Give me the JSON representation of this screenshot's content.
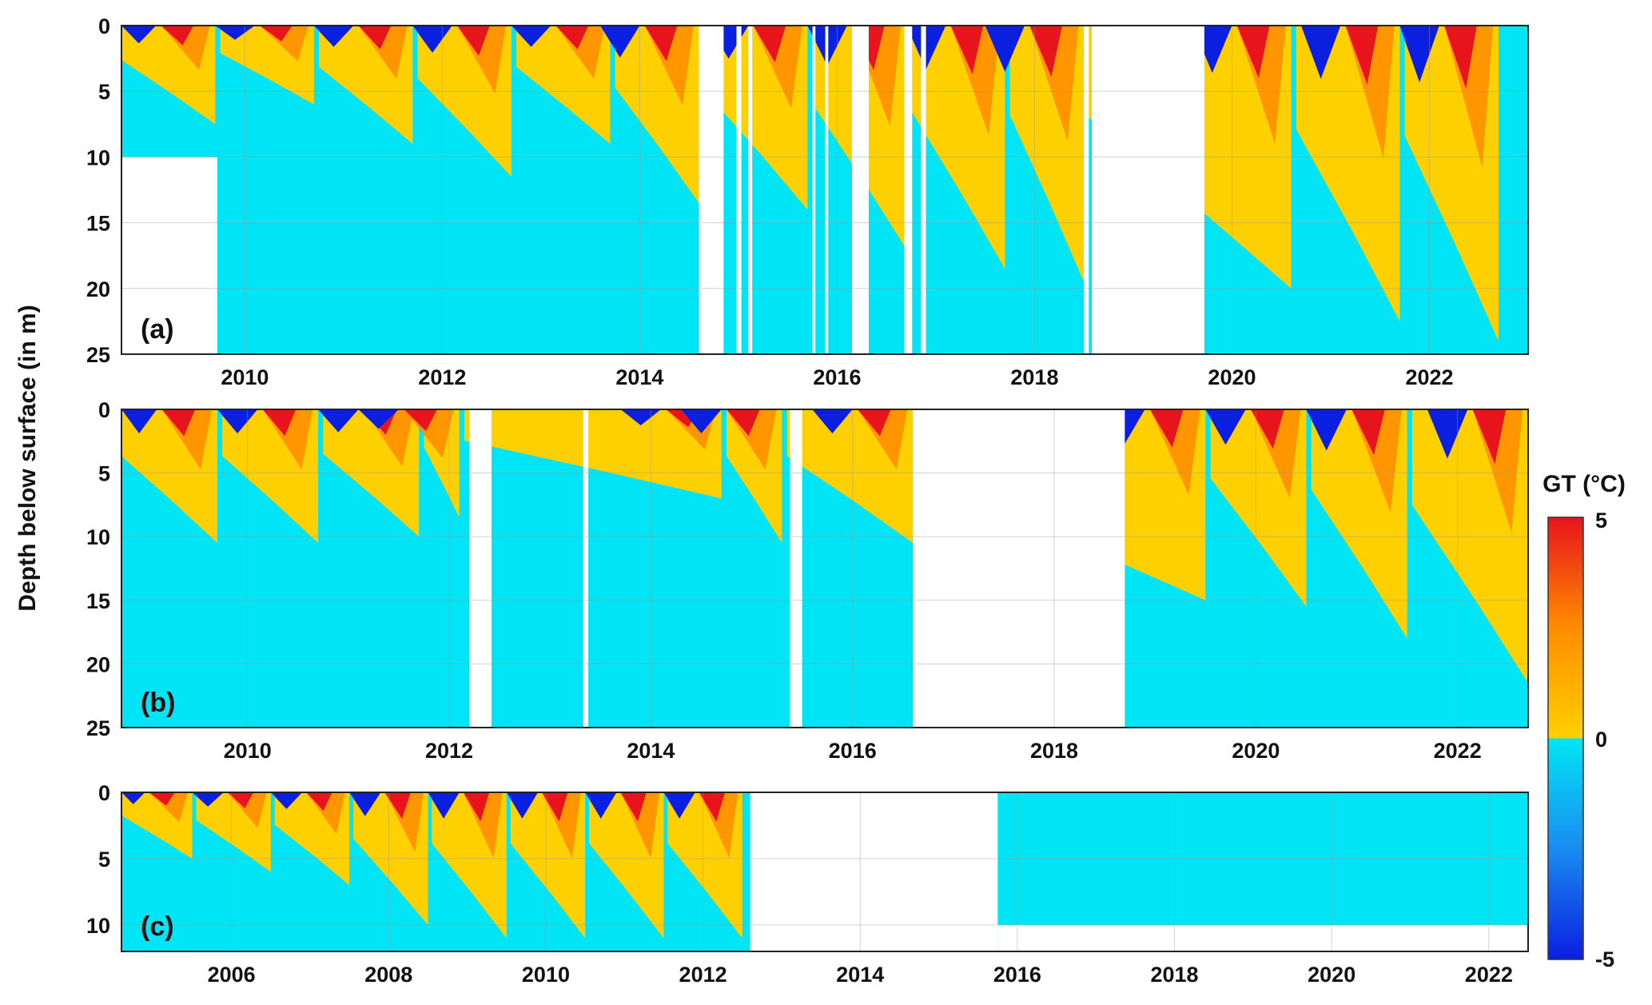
{
  "figure": {
    "ylabel": "Depth below surface (in m)",
    "colorbar": {
      "title": "GT (°C)",
      "ticks": [
        "5",
        "0",
        "-5"
      ],
      "range": [
        -5,
        5
      ],
      "colors": {
        "cold_deep": "#0a1fe0",
        "cold_mid": "#1a8cf0",
        "frozen": "#00e5f5",
        "unfrozen": "#ffd000",
        "warm_mid": "#ff8c00",
        "warm_hot": "#e8141c"
      }
    }
  },
  "chart_data": [
    {
      "type": "heatmap",
      "panel_label": "(a)",
      "xlim": [
        2008.75,
        2023.0
      ],
      "ylim": [
        25,
        0
      ],
      "x_ticks": [
        "2010",
        "2012",
        "2014",
        "2016",
        "2018",
        "2020",
        "2022"
      ],
      "y_ticks": [
        "0",
        "5",
        "10",
        "15",
        "20",
        "25"
      ],
      "data_gaps": [
        [
          2008.75,
          2009.72,
          10,
          25
        ],
        [
          2014.6,
          2014.85,
          0,
          25
        ],
        [
          2014.98,
          2015.03,
          0,
          25
        ],
        [
          2015.1,
          2015.14,
          0,
          25
        ],
        [
          2015.75,
          2015.78,
          0,
          25
        ],
        [
          2015.88,
          2015.91,
          0,
          25
        ],
        [
          2016.15,
          2016.32,
          0,
          25
        ],
        [
          2016.68,
          2016.76,
          0,
          25
        ],
        [
          2016.85,
          2016.9,
          0,
          25
        ],
        [
          2018.5,
          2018.55,
          0,
          25
        ],
        [
          2018.58,
          2019.72,
          0,
          25
        ]
      ],
      "thaw_depth_peaks": [
        [
          2009.7,
          7.5
        ],
        [
          2010.7,
          6
        ],
        [
          2011.7,
          9
        ],
        [
          2012.7,
          11.5
        ],
        [
          2013.7,
          9
        ],
        [
          2014.6,
          13.5
        ],
        [
          2015.7,
          14
        ],
        [
          2016.7,
          17
        ],
        [
          2017.7,
          18.5
        ],
        [
          2018.5,
          19.5
        ],
        [
          2020.6,
          20
        ],
        [
          2021.7,
          22.5
        ],
        [
          2022.7,
          24
        ]
      ]
    },
    {
      "type": "heatmap",
      "panel_label": "(b)",
      "xlim": [
        2008.75,
        2022.7
      ],
      "ylim": [
        25,
        0
      ],
      "x_ticks": [
        "2010",
        "2012",
        "2014",
        "2016",
        "2018",
        "2020",
        "2022"
      ],
      "y_ticks": [
        "0",
        "5",
        "10",
        "15",
        "20",
        "25"
      ],
      "data_gaps": [
        [
          2012.2,
          2012.42,
          0,
          25
        ],
        [
          2013.33,
          2013.38,
          0,
          25
        ],
        [
          2015.38,
          2015.5,
          0,
          25
        ],
        [
          2016.6,
          2018.7,
          0,
          25
        ]
      ],
      "thaw_depth_peaks": [
        [
          2009.7,
          10.5
        ],
        [
          2010.7,
          10.5
        ],
        [
          2011.7,
          10
        ],
        [
          2012.1,
          8.5
        ],
        [
          2014.7,
          7
        ],
        [
          2015.3,
          10.5
        ],
        [
          2016.6,
          10.5
        ],
        [
          2019.5,
          15
        ],
        [
          2020.5,
          15.5
        ],
        [
          2021.5,
          18
        ],
        [
          2022.7,
          21.5
        ]
      ]
    },
    {
      "type": "heatmap",
      "panel_label": "(c)",
      "xlim": [
        2004.6,
        2022.5
      ],
      "ylim": [
        12,
        0
      ],
      "x_ticks": [
        "2006",
        "2008",
        "2010",
        "2012",
        "2014",
        "2016",
        "2018",
        "2020",
        "2022"
      ],
      "y_ticks": [
        "0",
        "5",
        "10"
      ],
      "data_gaps": [
        [
          2012.6,
          2015.75,
          0,
          12
        ],
        [
          2015.75,
          2022.5,
          10,
          12
        ]
      ],
      "thaw_depth_peaks": [
        [
          2005.5,
          5
        ],
        [
          2006.5,
          6
        ],
        [
          2007.5,
          7
        ],
        [
          2008.5,
          10
        ],
        [
          2009.5,
          11
        ],
        [
          2010.5,
          11
        ],
        [
          2011.5,
          11
        ],
        [
          2012.5,
          11
        ]
      ]
    }
  ]
}
